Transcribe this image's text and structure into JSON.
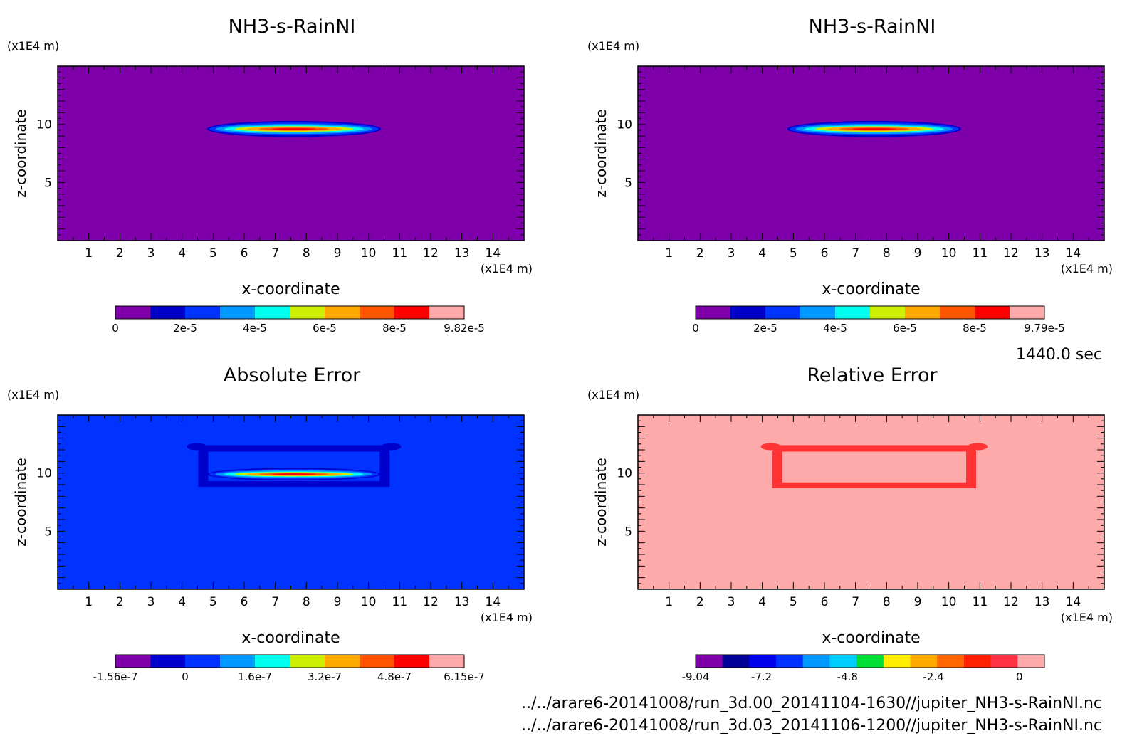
{
  "time_label": "1440.0 sec",
  "file_paths": [
    "../../arare6-20141008/run_3d.00_20141104-1630//jupiter_NH3-s-RainNI.nc",
    "../../arare6-20141008/run_3d.03_20141106-1200//jupiter_NH3-s-RainNI.nc"
  ],
  "chart_data": [
    {
      "type": "heatmap",
      "title": "NH3-s-RainNI",
      "xlabel": "x-coordinate",
      "ylabel": "z-coordinate",
      "x_unit": "(x1E4 m)",
      "y_unit": "(x1E4 m)",
      "xlim": [
        0,
        15
      ],
      "ylim": [
        0,
        15
      ],
      "x_ticks": [
        1,
        2,
        3,
        4,
        5,
        6,
        7,
        8,
        9,
        10,
        11,
        12,
        13,
        14
      ],
      "y_ticks": [
        5,
        10
      ],
      "background_color": "#7f00aa",
      "features": [
        {
          "shape": "lens",
          "x_range": [
            4.8,
            10.4
          ],
          "z_center": 9.6,
          "z_halfwidth": 0.45,
          "value": "peak ~9.8e-5"
        }
      ],
      "colorbar": {
        "colors": [
          "#7f00aa",
          "#0000cc",
          "#0033ff",
          "#0099ff",
          "#00ffee",
          "#ccee00",
          "#ffaa00",
          "#ff5500",
          "#ff0000",
          "#ffaaaa"
        ],
        "labels": [
          "0",
          "2e-5",
          "4e-5",
          "6e-5",
          "8e-5",
          "9.82e-5"
        ]
      }
    },
    {
      "type": "heatmap",
      "title": "NH3-s-RainNI",
      "xlabel": "x-coordinate",
      "ylabel": "z-coordinate",
      "x_unit": "(x1E4 m)",
      "y_unit": "(x1E4 m)",
      "xlim": [
        0,
        15
      ],
      "ylim": [
        0,
        15
      ],
      "x_ticks": [
        1,
        2,
        3,
        4,
        5,
        6,
        7,
        8,
        9,
        10,
        11,
        12,
        13,
        14
      ],
      "y_ticks": [
        5,
        10
      ],
      "background_color": "#7f00aa",
      "features": [
        {
          "shape": "lens",
          "x_range": [
            4.8,
            10.4
          ],
          "z_center": 9.6,
          "z_halfwidth": 0.45,
          "value": "peak ~9.8e-5"
        }
      ],
      "colorbar": {
        "colors": [
          "#7f00aa",
          "#0000cc",
          "#0033ff",
          "#0099ff",
          "#00ffee",
          "#ccee00",
          "#ffaa00",
          "#ff5500",
          "#ff0000",
          "#ffaaaa"
        ],
        "labels": [
          "0",
          "2e-5",
          "4e-5",
          "6e-5",
          "8e-5",
          "9.79e-5"
        ]
      }
    },
    {
      "type": "heatmap",
      "title": "Absolute Error",
      "xlabel": "x-coordinate",
      "ylabel": "z-coordinate",
      "x_unit": "(x1E4 m)",
      "y_unit": "(x1E4 m)",
      "xlim": [
        0,
        15
      ],
      "ylim": [
        0,
        15
      ],
      "x_ticks": [
        1,
        2,
        3,
        4,
        5,
        6,
        7,
        8,
        9,
        10,
        11,
        12,
        13,
        14
      ],
      "y_ticks": [
        5,
        10
      ],
      "background_color": "#0033ff",
      "features": [
        {
          "shape": "frame",
          "x_range": [
            4.2,
            11.0
          ],
          "z_top": 12.4,
          "z_bottom": 9.3,
          "color": "#0000cc"
        },
        {
          "shape": "lens",
          "x_range": [
            4.8,
            10.4
          ],
          "z_center": 9.9,
          "z_halfwidth": 0.3,
          "value": "positive error band"
        }
      ],
      "colorbar": {
        "colors": [
          "#7f00aa",
          "#0000cc",
          "#0033ff",
          "#0099ff",
          "#00ffee",
          "#ccee00",
          "#ffaa00",
          "#ff5500",
          "#ff0000",
          "#ffaaaa"
        ],
        "labels": [
          "-1.56e-7",
          "0",
          "1.6e-7",
          "3.2e-7",
          "4.8e-7",
          "6.15e-7"
        ]
      }
    },
    {
      "type": "heatmap",
      "title": "Relative Error",
      "xlabel": "x-coordinate",
      "ylabel": "z-coordinate",
      "x_unit": "(x1E4 m)",
      "y_unit": "(x1E4 m)",
      "xlim": [
        0,
        15
      ],
      "ylim": [
        0,
        15
      ],
      "x_ticks": [
        1,
        2,
        3,
        4,
        5,
        6,
        7,
        8,
        9,
        10,
        11,
        12,
        13,
        14
      ],
      "y_ticks": [
        5,
        10
      ],
      "background_color": "#ffaaaa",
      "features": [
        {
          "shape": "frame",
          "x_range": [
            4.0,
            11.2
          ],
          "z_top": 12.4,
          "z_bottom": 9.2,
          "color": "#ff3333"
        }
      ],
      "colorbar": {
        "colors": [
          "#7f00aa",
          "#000099",
          "#0000ee",
          "#0033ff",
          "#0099ff",
          "#00ccff",
          "#00dd33",
          "#ffee00",
          "#ffaa00",
          "#ff6600",
          "#ff2200",
          "#ff3344",
          "#ffaaaa"
        ],
        "labels": [
          "-9.04",
          "-7.2",
          "-4.8",
          "-2.4",
          "0"
        ],
        "label_values": [
          -9.04,
          -7.2,
          -4.8,
          -2.4,
          0
        ],
        "range": [
          -9.04,
          0.7
        ]
      }
    }
  ]
}
